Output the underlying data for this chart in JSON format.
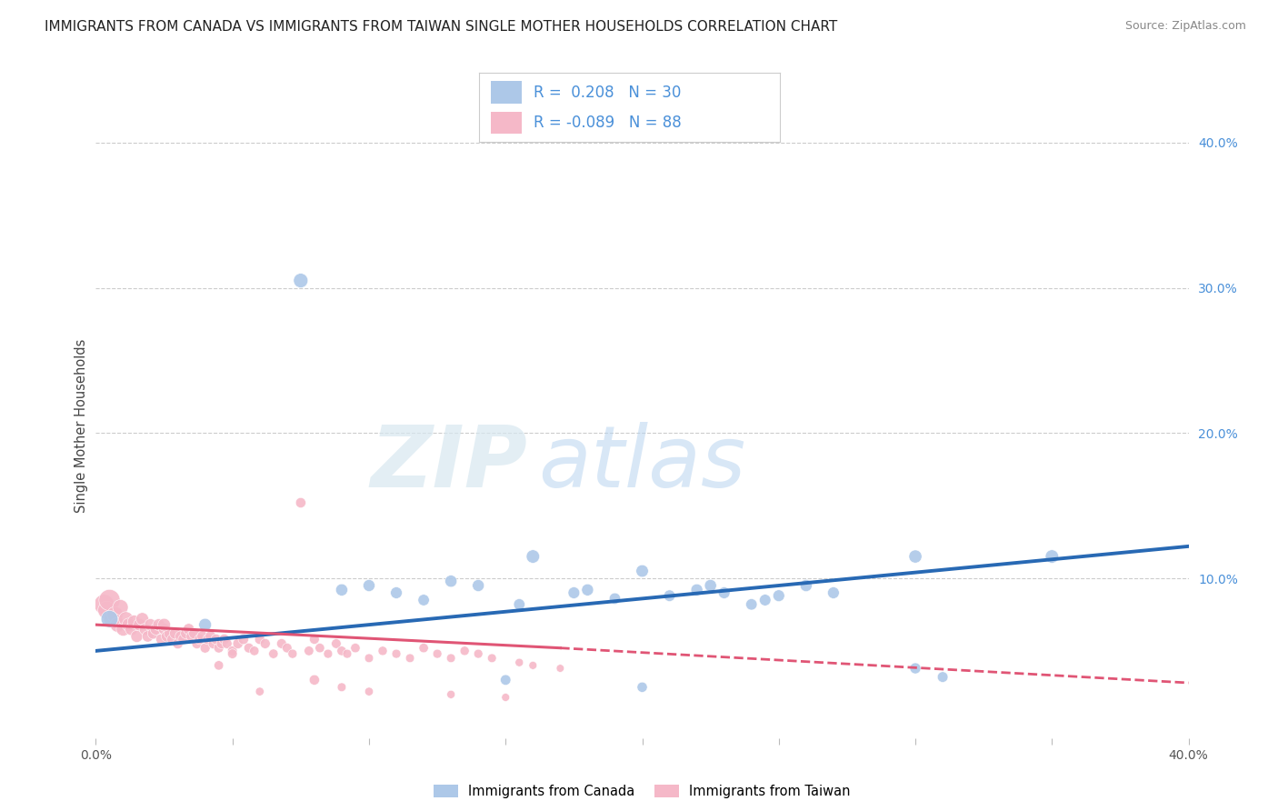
{
  "title": "IMMIGRANTS FROM CANADA VS IMMIGRANTS FROM TAIWAN SINGLE MOTHER HOUSEHOLDS CORRELATION CHART",
  "source": "Source: ZipAtlas.com",
  "ylabel": "Single Mother Households",
  "canada_R": 0.208,
  "canada_N": 30,
  "taiwan_R": -0.089,
  "taiwan_N": 88,
  "canada_color": "#adc8e8",
  "taiwan_color": "#f5b8c8",
  "canada_line_color": "#2869b4",
  "taiwan_line_color": "#e05575",
  "watermark_zip": "ZIP",
  "watermark_atlas": "atlas",
  "background_color": "#ffffff",
  "grid_color": "#cccccc",
  "xlim": [
    0.0,
    0.4
  ],
  "ylim": [
    -0.01,
    0.42
  ],
  "canada_x": [
    0.005,
    0.04,
    0.075,
    0.09,
    0.1,
    0.11,
    0.12,
    0.13,
    0.14,
    0.155,
    0.16,
    0.175,
    0.18,
    0.19,
    0.2,
    0.21,
    0.22,
    0.225,
    0.23,
    0.24,
    0.245,
    0.25,
    0.26,
    0.27,
    0.3,
    0.3,
    0.31,
    0.35,
    0.2,
    0.15
  ],
  "canada_y": [
    0.072,
    0.068,
    0.305,
    0.092,
    0.095,
    0.09,
    0.085,
    0.098,
    0.095,
    0.082,
    0.115,
    0.09,
    0.092,
    0.086,
    0.105,
    0.088,
    0.092,
    0.095,
    0.09,
    0.082,
    0.085,
    0.088,
    0.095,
    0.09,
    0.038,
    0.115,
    0.032,
    0.115,
    0.025,
    0.03
  ],
  "taiwan_x": [
    0.003,
    0.004,
    0.005,
    0.006,
    0.007,
    0.008,
    0.009,
    0.01,
    0.011,
    0.012,
    0.013,
    0.014,
    0.015,
    0.016,
    0.017,
    0.018,
    0.019,
    0.02,
    0.021,
    0.022,
    0.023,
    0.024,
    0.025,
    0.026,
    0.027,
    0.028,
    0.029,
    0.03,
    0.031,
    0.032,
    0.033,
    0.034,
    0.035,
    0.036,
    0.037,
    0.038,
    0.039,
    0.04,
    0.041,
    0.042,
    0.043,
    0.044,
    0.045,
    0.046,
    0.047,
    0.048,
    0.05,
    0.052,
    0.054,
    0.056,
    0.058,
    0.06,
    0.062,
    0.065,
    0.068,
    0.07,
    0.072,
    0.075,
    0.078,
    0.08,
    0.082,
    0.085,
    0.088,
    0.09,
    0.092,
    0.095,
    0.1,
    0.105,
    0.11,
    0.115,
    0.12,
    0.125,
    0.13,
    0.135,
    0.14,
    0.145,
    0.155,
    0.16,
    0.17,
    0.1,
    0.06,
    0.09,
    0.13,
    0.15,
    0.045,
    0.025,
    0.05,
    0.08
  ],
  "taiwan_y": [
    0.082,
    0.078,
    0.085,
    0.072,
    0.075,
    0.068,
    0.08,
    0.065,
    0.072,
    0.068,
    0.065,
    0.07,
    0.06,
    0.068,
    0.072,
    0.065,
    0.06,
    0.068,
    0.062,
    0.065,
    0.068,
    0.058,
    0.065,
    0.06,
    0.062,
    0.058,
    0.062,
    0.055,
    0.06,
    0.058,
    0.062,
    0.065,
    0.06,
    0.062,
    0.055,
    0.058,
    0.06,
    0.052,
    0.058,
    0.06,
    0.055,
    0.058,
    0.052,
    0.055,
    0.058,
    0.055,
    0.05,
    0.055,
    0.058,
    0.052,
    0.05,
    0.058,
    0.055,
    0.048,
    0.055,
    0.052,
    0.048,
    0.152,
    0.05,
    0.058,
    0.052,
    0.048,
    0.055,
    0.05,
    0.048,
    0.052,
    0.045,
    0.05,
    0.048,
    0.045,
    0.052,
    0.048,
    0.045,
    0.05,
    0.048,
    0.045,
    0.042,
    0.04,
    0.038,
    0.022,
    0.022,
    0.025,
    0.02,
    0.018,
    0.04,
    0.068,
    0.048,
    0.03
  ],
  "canada_sizes": [
    180,
    100,
    130,
    90,
    88,
    85,
    80,
    90,
    88,
    80,
    110,
    85,
    88,
    80,
    95,
    82,
    88,
    90,
    85,
    80,
    82,
    85,
    90,
    85,
    75,
    105,
    70,
    110,
    65,
    68
  ],
  "taiwan_sizes": [
    250,
    200,
    280,
    180,
    160,
    140,
    150,
    120,
    130,
    110,
    100,
    110,
    90,
    95,
    100,
    85,
    80,
    90,
    80,
    85,
    88,
    75,
    82,
    78,
    80,
    72,
    78,
    68,
    72,
    70,
    72,
    78,
    70,
    74,
    65,
    68,
    72,
    62,
    68,
    72,
    65,
    68,
    60,
    65,
    68,
    62,
    58,
    65,
    68,
    60,
    55,
    65,
    62,
    55,
    60,
    58,
    52,
    65,
    56,
    60,
    55,
    50,
    58,
    55,
    50,
    55,
    48,
    52,
    50,
    48,
    55,
    50,
    48,
    52,
    50,
    48,
    42,
    40,
    38,
    45,
    45,
    48,
    42,
    40,
    55,
    100,
    58,
    65
  ]
}
